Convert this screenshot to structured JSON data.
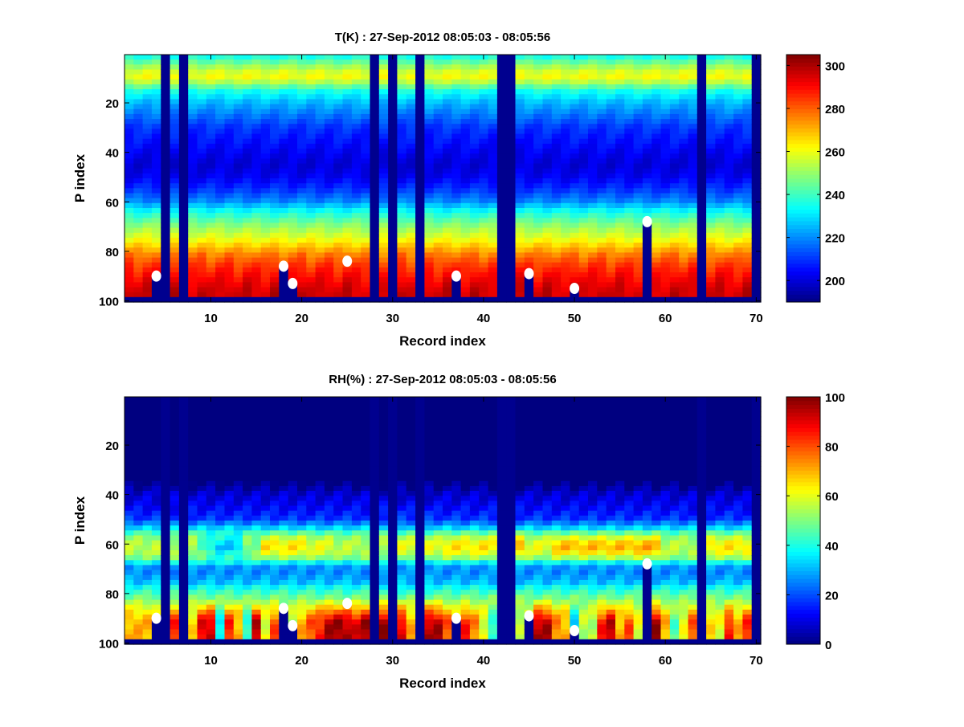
{
  "chart_data": [
    {
      "type": "heatmap",
      "title": "T(K) : 27-Sep-2012 08:05:03 - 08:05:56",
      "xlabel": "Record index",
      "ylabel": "P index",
      "xlim": [
        0.5,
        70.5
      ],
      "ylim": [
        0.5,
        100.5
      ],
      "y_reversed": true,
      "xticks": [
        10,
        20,
        30,
        40,
        50,
        60,
        70
      ],
      "yticks": [
        20,
        40,
        60,
        80,
        100
      ],
      "clim": [
        190,
        305
      ],
      "colorbar_ticks": [
        200,
        220,
        240,
        260,
        280,
        300
      ],
      "colormap": "jet",
      "missing_color": "#00008f",
      "missing_records": [
        5,
        7,
        28,
        30,
        33,
        42,
        43,
        64,
        70
      ],
      "missing_below_p": 98.5,
      "profile_p": [
        1,
        5,
        9,
        12,
        15,
        20,
        30,
        40,
        45,
        50,
        55,
        60,
        63,
        66,
        70,
        75,
        78,
        82,
        86,
        90,
        95,
        100
      ],
      "profile_value": [
        235,
        250,
        262,
        252,
        236,
        225,
        210,
        203,
        200,
        203,
        210,
        220,
        232,
        240,
        250,
        260,
        268,
        278,
        285,
        290,
        295,
        297
      ],
      "markers": [
        {
          "record": 4,
          "p": 90
        },
        {
          "record": 18,
          "p": 86
        },
        {
          "record": 19,
          "p": 93
        },
        {
          "record": 25,
          "p": 84
        },
        {
          "record": 37,
          "p": 90
        },
        {
          "record": 45,
          "p": 89
        },
        {
          "record": 50,
          "p": 95
        },
        {
          "record": 58,
          "p": 68
        }
      ],
      "marker_columns_missing_below": true
    },
    {
      "type": "heatmap",
      "title": "RH(%) : 27-Sep-2012 08:05:03 - 08:05:56",
      "xlabel": "Record index",
      "ylabel": "P index",
      "xlim": [
        0.5,
        70.5
      ],
      "ylim": [
        0.5,
        100.5
      ],
      "y_reversed": true,
      "xticks": [
        10,
        20,
        30,
        40,
        50,
        60,
        70
      ],
      "yticks": [
        20,
        40,
        60,
        80,
        100
      ],
      "clim": [
        0,
        100
      ],
      "colorbar_ticks": [
        0,
        20,
        40,
        60,
        80,
        100
      ],
      "colormap": "jet",
      "missing_color": "#00008f",
      "missing_records": [
        5,
        7,
        28,
        30,
        33,
        42,
        43,
        64,
        70
      ],
      "missing_below_p": 98.5,
      "profile_p": [
        1,
        35,
        40,
        45,
        50,
        55,
        60,
        63,
        66,
        70,
        75,
        78,
        82,
        86,
        90,
        95,
        100
      ],
      "profile_value": [
        0,
        0,
        8,
        12,
        18,
        40,
        55,
        55,
        45,
        25,
        30,
        40,
        50,
        55,
        60,
        70,
        75
      ],
      "mid_band_rh": [
        55,
        55,
        55,
        55,
        0,
        55,
        0,
        55,
        45,
        35,
        30,
        30,
        30,
        50,
        50,
        65,
        65,
        65,
        65,
        65,
        60,
        60,
        60,
        55,
        55,
        55,
        55,
        0,
        55,
        0,
        60,
        60,
        0,
        60,
        60,
        65,
        65,
        65,
        65,
        65,
        65,
        0,
        0,
        72,
        60,
        60,
        60,
        70,
        70,
        70,
        70,
        70,
        70,
        70,
        70,
        70,
        72,
        72,
        72,
        55,
        55,
        55,
        55,
        0,
        65,
        65,
        65,
        65,
        65,
        0
      ],
      "near_surface_rh": [
        70,
        70,
        70,
        60,
        0,
        85,
        0,
        65,
        90,
        92,
        35,
        85,
        70,
        40,
        95,
        60,
        80,
        50,
        55,
        70,
        80,
        85,
        95,
        98,
        95,
        90,
        98,
        0,
        98,
        0,
        90,
        70,
        0,
        95,
        95,
        80,
        60,
        85,
        75,
        60,
        40,
        0,
        0,
        55,
        60,
        95,
        95,
        75,
        70,
        30,
        55,
        55,
        85,
        95,
        70,
        80,
        60,
        40,
        98,
        70,
        45,
        60,
        80,
        0,
        65,
        60,
        85,
        70,
        85,
        0
      ],
      "markers": [
        {
          "record": 4,
          "p": 90
        },
        {
          "record": 18,
          "p": 86
        },
        {
          "record": 19,
          "p": 93
        },
        {
          "record": 25,
          "p": 84
        },
        {
          "record": 37,
          "p": 90
        },
        {
          "record": 45,
          "p": 89
        },
        {
          "record": 50,
          "p": 95
        },
        {
          "record": 58,
          "p": 68
        }
      ],
      "marker_columns_missing_below": true
    }
  ]
}
